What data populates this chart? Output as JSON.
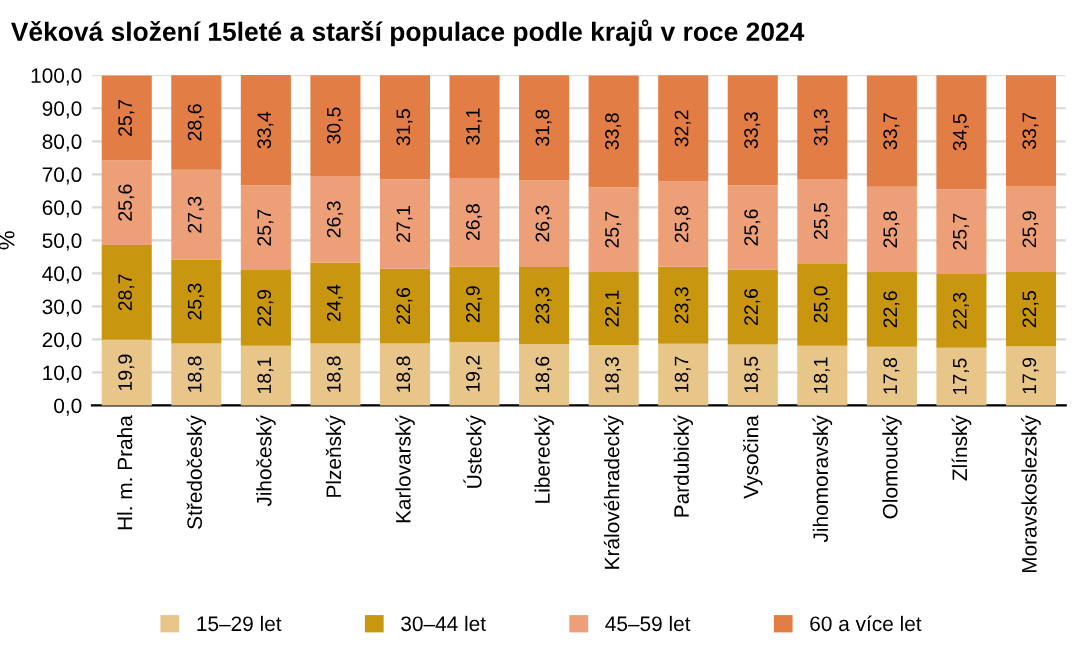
{
  "chart_data": {
    "type": "bar",
    "stacked": true,
    "title": "Věková složení 15leté a starší populace podle krajů v roce 2024",
    "ylabel": "%",
    "categories": [
      "Hl. m. Praha",
      "Středočeský",
      "Jihočeský",
      "Plzeňský",
      "Karlovarský",
      "Ústecký",
      "Liberecký",
      "Královéhradecký",
      "Pardubický",
      "Vysočina",
      "Jihomoravský",
      "Olomoucký",
      "Zlínský",
      "Moravskoslezský"
    ],
    "series": [
      {
        "name": "15–29 let",
        "color": "#e8c68a",
        "values": [
          19.9,
          18.8,
          18.1,
          18.8,
          18.8,
          19.2,
          18.6,
          18.3,
          18.7,
          18.5,
          18.1,
          17.8,
          17.5,
          17.9
        ],
        "value_labels": [
          "19,9",
          "18,8",
          "18,1",
          "18,8",
          "18,8",
          "19,2",
          "18,6",
          "18,3",
          "18,7",
          "18,5",
          "18,1",
          "17,8",
          "17,5",
          "17,9"
        ]
      },
      {
        "name": "30–44 let",
        "color": "#c9970f",
        "values": [
          28.7,
          25.3,
          22.9,
          24.4,
          22.6,
          22.9,
          23.3,
          22.1,
          23.3,
          22.6,
          25.0,
          22.6,
          22.3,
          22.5
        ],
        "value_labels": [
          "28,7",
          "25,3",
          "22,9",
          "24,4",
          "22,6",
          "22,9",
          "23,3",
          "22,1",
          "23,3",
          "22,6",
          "25,0",
          "22,6",
          "22,3",
          "22,5"
        ]
      },
      {
        "name": "45–59 let",
        "color": "#eda077",
        "values": [
          25.6,
          27.3,
          25.7,
          26.3,
          27.1,
          26.8,
          26.3,
          25.7,
          25.8,
          25.6,
          25.5,
          25.8,
          25.7,
          25.9
        ],
        "value_labels": [
          "25,6",
          "27,3",
          "25,7",
          "26,3",
          "27,1",
          "26,8",
          "26,3",
          "25,7",
          "25,8",
          "25,6",
          "25,5",
          "25,8",
          "25,7",
          "25,9"
        ]
      },
      {
        "name": "60 a více let",
        "color": "#e27d46",
        "values": [
          25.7,
          28.6,
          33.4,
          30.5,
          31.5,
          31.1,
          31.8,
          33.8,
          32.2,
          33.3,
          31.3,
          33.7,
          34.5,
          33.7
        ],
        "value_labels": [
          "25,7",
          "28,6",
          "33,4",
          "30,5",
          "31,5",
          "31,1",
          "31,8",
          "33,8",
          "32,2",
          "33,3",
          "31,3",
          "33,7",
          "34,5",
          "33,7"
        ]
      }
    ],
    "ylim": [
      0,
      100
    ],
    "yticks": [
      {
        "value": 0,
        "label": "0,0"
      },
      {
        "value": 10,
        "label": "10,0"
      },
      {
        "value": 20,
        "label": "20,0"
      },
      {
        "value": 30,
        "label": "30,0"
      },
      {
        "value": 40,
        "label": "40,0"
      },
      {
        "value": 50,
        "label": "50,0"
      },
      {
        "value": 60,
        "label": "60,0"
      },
      {
        "value": 70,
        "label": "70,0"
      },
      {
        "value": 80,
        "label": "80,0"
      },
      {
        "value": 90,
        "label": "90,0"
      },
      {
        "value": 100,
        "label": "100,0"
      }
    ],
    "grid": "y",
    "legend": "bottom"
  }
}
